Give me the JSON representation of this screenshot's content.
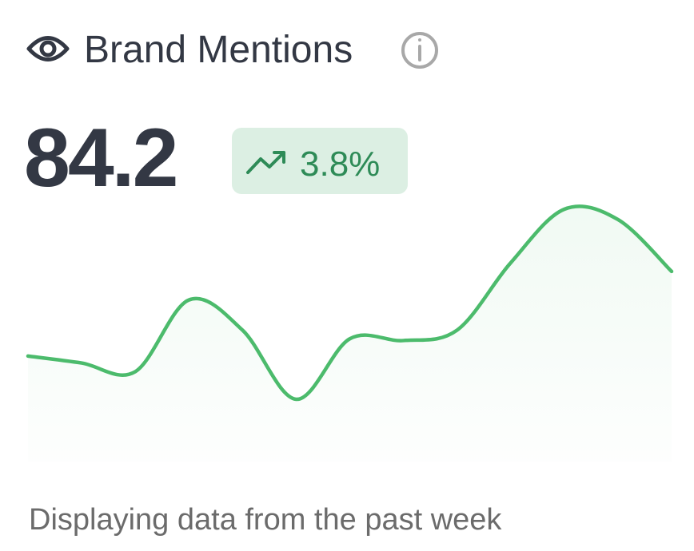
{
  "header": {
    "title": "Brand Mentions"
  },
  "metric": {
    "value": "84.2",
    "change": "3.8%"
  },
  "chart_data": {
    "type": "line",
    "values": [
      150,
      142,
      132,
      215,
      180,
      100,
      170,
      168,
      180,
      258,
      320,
      308,
      248
    ],
    "color": "#4cbb6c"
  },
  "footer": {
    "note": "Displaying data from the past week"
  }
}
